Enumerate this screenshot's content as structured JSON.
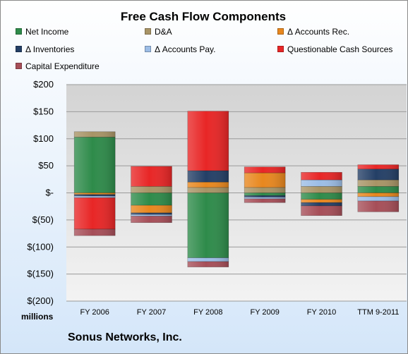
{
  "chart_data": {
    "type": "bar",
    "stacked": true,
    "title": "Free Cash Flow Components",
    "xlabel": "",
    "ylabel": "",
    "unit_label": "millions",
    "categories": [
      "FY 2006",
      "FY 2007",
      "FY 2008",
      "FY 2009",
      "FY 2010",
      "TTM 9-2011"
    ],
    "ylim": [
      -200,
      200
    ],
    "yticks": [
      200,
      150,
      100,
      50,
      0,
      -50,
      -100,
      -150,
      -200
    ],
    "ytick_labels": [
      "$200",
      "$150",
      "$100",
      "$50",
      "$-",
      "$(50)",
      "$(100)",
      "$(150)",
      "$(200)"
    ],
    "grid": true,
    "legend_position": "top",
    "series": [
      {
        "name": "Net Income",
        "color": "#2e8b4a",
        "values": [
          103,
          -23,
          -120,
          -5,
          -12,
          12
        ]
      },
      {
        "name": "D&A",
        "color": "#a89466",
        "values": [
          10,
          12,
          10,
          10,
          12,
          12
        ]
      },
      {
        "name": "Δ Accounts Rec.",
        "color": "#e8871e",
        "values": [
          -3,
          -14,
          10,
          27,
          -6,
          -7
        ]
      },
      {
        "name": "Δ Inventories",
        "color": "#243f66",
        "values": [
          -3,
          -3,
          21,
          -3,
          -6,
          20
        ]
      },
      {
        "name": "Δ Accounts Pay.",
        "color": "#9cbde6",
        "values": [
          -3,
          -3,
          -7,
          -3,
          12,
          -8
        ]
      },
      {
        "name": "Questionable Cash Sources",
        "color": "#e82626",
        "values": [
          -58,
          37,
          110,
          11,
          14,
          8
        ]
      },
      {
        "name": "Capital Expenditure",
        "color": "#a64e58",
        "values": [
          -12,
          -12,
          -10,
          -7,
          -18,
          -20
        ]
      }
    ]
  },
  "footer": {
    "company": "Sonus Networks, Inc."
  }
}
